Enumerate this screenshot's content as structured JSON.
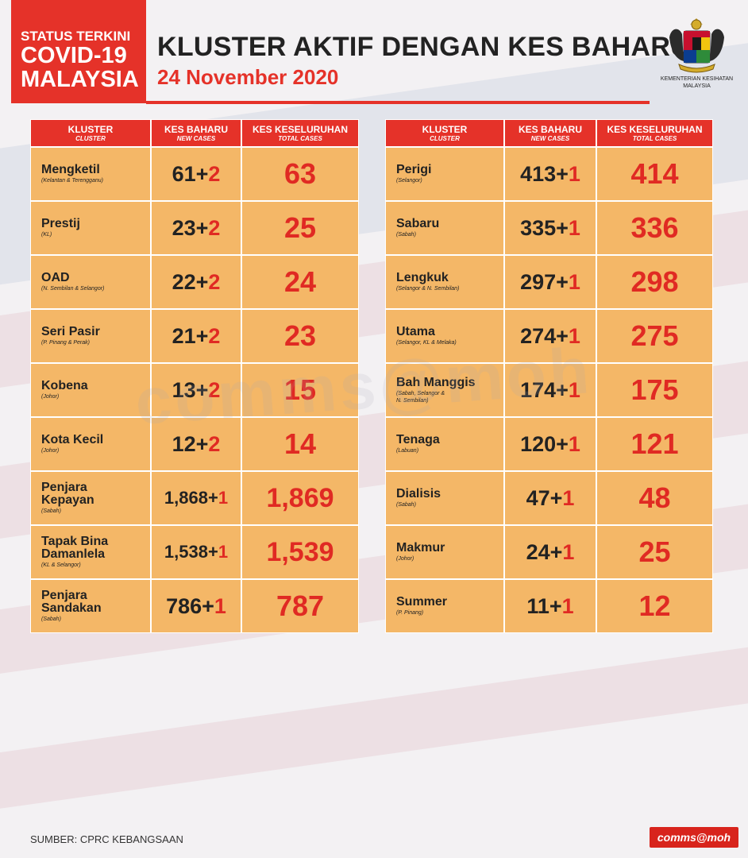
{
  "header": {
    "badge_line1": "STATUS TERKINI",
    "badge_line2": "COVID-19",
    "badge_line3": "MALAYSIA",
    "title": "KLUSTER AKTIF DENGAN KES BAHARU",
    "date": "24 November 2020",
    "ministry_line1": "KEMENTERIAN KESIHATAN",
    "ministry_line2": "MALAYSIA"
  },
  "watermark": "comms@moh",
  "columns": {
    "cluster": "KLUSTER",
    "cluster_en": "CLUSTER",
    "new": "KES BAHARU",
    "new_en": "NEW CASES",
    "total": "KES KESELURUHAN",
    "total_en": "TOTAL CASES"
  },
  "left_table": [
    {
      "name": "Mengketil",
      "loc": "(Kelantan & Terengganu)",
      "new_base": "61+",
      "new_plus": "2",
      "total": "63"
    },
    {
      "name": "Prestij",
      "loc": "(KL)",
      "new_base": "23+",
      "new_plus": "2",
      "total": "25"
    },
    {
      "name": "OAD",
      "loc": "(N. Sembilan & Selangor)",
      "new_base": "22+",
      "new_plus": "2",
      "total": "24"
    },
    {
      "name": "Seri Pasir",
      "loc": "(P. Pinang & Perak)",
      "new_base": "21+",
      "new_plus": "2",
      "total": "23"
    },
    {
      "name": "Kobena",
      "loc": "(Johor)",
      "new_base": "13+",
      "new_plus": "2",
      "total": "15"
    },
    {
      "name": "Kota Kecil",
      "loc": "(Johor)",
      "new_base": "12+",
      "new_plus": "2",
      "total": "14"
    },
    {
      "name": "Penjara\nKepayan",
      "loc": "(Sabah)",
      "new_base": "1,868+",
      "new_plus": "1",
      "total": "1,869"
    },
    {
      "name": "Tapak Bina\nDamanlela",
      "loc": "(KL & Selangor)",
      "new_base": "1,538+",
      "new_plus": "1",
      "total": "1,539"
    },
    {
      "name": "Penjara\nSandakan",
      "loc": "(Sabah)",
      "new_base": "786+",
      "new_plus": "1",
      "total": "787"
    }
  ],
  "right_table": [
    {
      "name": "Perigi",
      "loc": "(Selangor)",
      "new_base": "413+",
      "new_plus": "1",
      "total": "414"
    },
    {
      "name": "Sabaru",
      "loc": "(Sabah)",
      "new_base": "335+",
      "new_plus": "1",
      "total": "336"
    },
    {
      "name": "Lengkuk",
      "loc": "(Selangor & N. Sembilan)",
      "new_base": "297+",
      "new_plus": "1",
      "total": "298"
    },
    {
      "name": "Utama",
      "loc": "(Selangor, KL & Melaka)",
      "new_base": "274+",
      "new_plus": "1",
      "total": "275"
    },
    {
      "name": "Bah Manggis",
      "loc": "(Sabah, Selangor &\nN. Sembilan)",
      "new_base": "174+",
      "new_plus": "1",
      "total": "175"
    },
    {
      "name": "Tenaga",
      "loc": "(Labuan)",
      "new_base": "120+",
      "new_plus": "1",
      "total": "121"
    },
    {
      "name": "Dialisis",
      "loc": "(Sabah)",
      "new_base": "47+",
      "new_plus": "1",
      "total": "48"
    },
    {
      "name": "Makmur",
      "loc": "(Johor)",
      "new_base": "24+",
      "new_plus": "1",
      "total": "25"
    },
    {
      "name": "Summer",
      "loc": "(P. Pinang)",
      "new_base": "11+",
      "new_plus": "1",
      "total": "12"
    }
  ],
  "footer": {
    "source": "SUMBER: CPRC KEBANGSAAN",
    "brand": "comms@moh"
  },
  "colors": {
    "red": "#e53229",
    "cell": "#f4b767",
    "text": "#222222"
  }
}
